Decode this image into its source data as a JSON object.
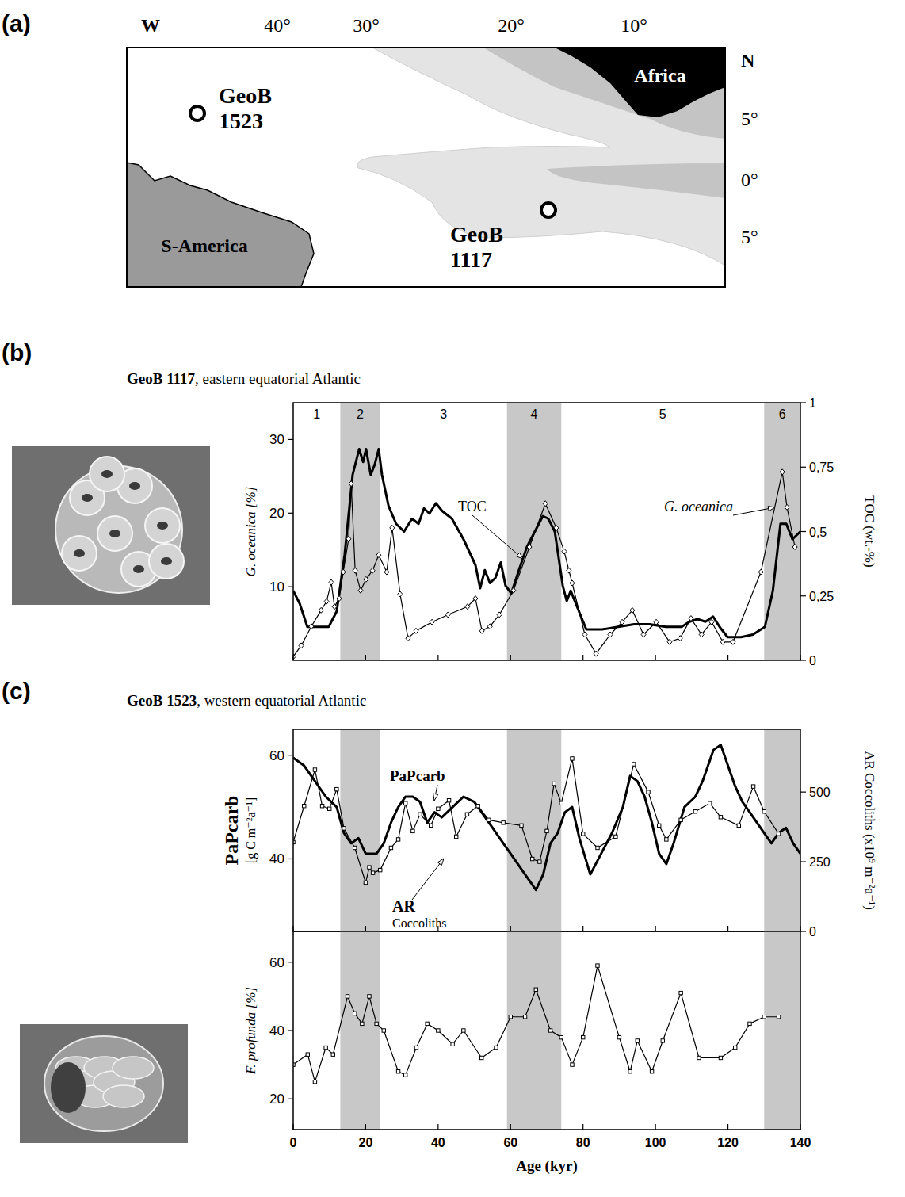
{
  "map": {
    "panel": "(a)",
    "lon_labels": [
      "W",
      "40°",
      "30°",
      "20°",
      "10°"
    ],
    "lat_labels": [
      "N",
      "5°",
      "0°",
      "5°"
    ],
    "regions": [
      "Africa",
      "S-America"
    ],
    "sites": [
      "GeoB 1523",
      "GeoB 1117"
    ]
  },
  "chart_data": [
    {
      "type": "line",
      "panel": "(b)",
      "title": "GeoB 1117, eastern equatorial Atlantic",
      "ylabel": "G. oceanica [%]",
      "y2label": "TOC (wt.-%)",
      "xlim": [
        0,
        140
      ],
      "xticks": [
        0,
        20,
        40,
        60,
        80,
        100,
        120,
        140
      ],
      "ylim": [
        0,
        35
      ],
      "yticks": [
        10,
        20,
        30
      ],
      "y2lim": [
        0,
        1
      ],
      "y2ticks": [
        0,
        {
          "value": 0.25,
          "label": "0,25"
        },
        {
          "value": 0.5,
          "label": "0,5"
        },
        {
          "value": 0.75,
          "label": "0,75"
        },
        1
      ],
      "tick_labels": "y",
      "stages": [
        {
          "label": "1",
          "from": 0,
          "to": 13
        },
        {
          "label": "2",
          "from": 13,
          "to": 24
        },
        {
          "label": "3",
          "from": 24,
          "to": 59
        },
        {
          "label": "4",
          "from": 59,
          "to": 74
        },
        {
          "label": "5",
          "from": 74,
          "to": 130
        },
        {
          "label": "6",
          "from": 130,
          "to": 140
        }
      ],
      "shaded_intervals": [
        [
          13,
          24
        ],
        [
          59,
          74
        ],
        [
          130,
          140
        ]
      ],
      "series": [
        {
          "name": "TOC",
          "axis": "y2",
          "color": "#000000",
          "line_style": "thick",
          "marker": "none",
          "x": [
            0,
            1.8,
            3.9,
            6.6,
            9.8,
            12.0,
            14.2,
            16.4,
            18.2,
            19.3,
            20.1,
            21.4,
            22.5,
            23.6,
            24.5,
            26.3,
            28.4,
            30.6,
            32.8,
            34.6,
            36.1,
            37.6,
            39.4,
            41.1,
            43.8,
            47.0,
            50.3,
            51.6,
            52.9,
            54.3,
            55.8,
            57.3,
            58.6,
            60.2,
            62.3,
            64.5,
            66.7,
            68.9,
            70.4,
            72.2,
            74.4,
            75.5,
            76.6,
            78.3,
            80.9,
            85.3,
            89.7,
            94.1,
            98.4,
            102.8,
            107.2,
            109.4,
            111.6,
            113.8,
            115.9,
            117.7,
            119.9,
            123.6,
            126.9,
            130.2,
            132.4,
            134.5,
            136.1,
            137.8,
            140
          ],
          "values": [
            0.27,
            0.22,
            0.13,
            0.13,
            0.13,
            0.19,
            0.41,
            0.72,
            0.82,
            0.77,
            0.82,
            0.72,
            0.76,
            0.82,
            0.72,
            0.6,
            0.53,
            0.5,
            0.55,
            0.53,
            0.59,
            0.57,
            0.61,
            0.58,
            0.55,
            0.47,
            0.37,
            0.28,
            0.35,
            0.3,
            0.32,
            0.38,
            0.29,
            0.26,
            0.35,
            0.44,
            0.5,
            0.56,
            0.55,
            0.5,
            0.29,
            0.23,
            0.27,
            0.21,
            0.12,
            0.12,
            0.13,
            0.14,
            0.14,
            0.13,
            0.13,
            0.15,
            0.16,
            0.15,
            0.17,
            0.13,
            0.09,
            0.09,
            0.1,
            0.13,
            0.27,
            0.53,
            0.53,
            0.47,
            0.5
          ]
        },
        {
          "name": "G. oceanica",
          "color": "#000000",
          "line_style": "thin",
          "marker": "diamond",
          "x": [
            0,
            2.2,
            5.0,
            7.7,
            9.2,
            10.5,
            11.4,
            12.7,
            13.8,
            15.3,
            16.0,
            17.1,
            18.6,
            20.1,
            21.9,
            23.6,
            25.8,
            27.3,
            29.5,
            31.7,
            33.9,
            38.3,
            42.7,
            48.1,
            50.3,
            52.1,
            54.3,
            56.9,
            60.8,
            65.2,
            69.6,
            72.6,
            74.8,
            76.1,
            77.0,
            80.5,
            83.6,
            87.5,
            90.8,
            93.6,
            96.7,
            100.2,
            103.9,
            106.8,
            109.8,
            112.7,
            115.5,
            118.6,
            121.4,
            129.1,
            135.0,
            136.3,
            138.5
          ],
          "values": [
            0.5,
            2,
            4.6,
            6.8,
            8,
            10.6,
            7.3,
            8.4,
            12,
            16.5,
            24,
            12.2,
            9.5,
            11,
            12.2,
            14.3,
            12,
            18,
            9,
            3,
            4,
            5.2,
            6.2,
            7.3,
            8.4,
            4,
            4.6,
            6.2,
            9.5,
            15.4,
            21.3,
            18,
            14.8,
            12.2,
            10.5,
            3.5,
            0.9,
            3.5,
            5.2,
            6.8,
            3.5,
            5.2,
            2.5,
            3,
            5.7,
            3.5,
            5.2,
            2.5,
            2.5,
            12,
            25.6,
            20.8,
            15.4
          ]
        }
      ]
    },
    {
      "type": "line",
      "panel": "(c)",
      "title": "GeoB 1523, western equatorial Atlantic",
      "ylabel": "PaPcarb [g C m⁻²a⁻¹]",
      "y2label": "AR Coccoliths (x10⁹ m⁻²a⁻¹)",
      "xlim": [
        0,
        140
      ],
      "xticks": [
        0,
        20,
        40,
        60,
        80,
        100,
        120,
        140
      ],
      "ylim": [
        26,
        65
      ],
      "yticks": [
        40,
        60
      ],
      "y2lim": [
        0,
        725
      ],
      "y2ticks": [
        0,
        250,
        500
      ],
      "tick_labels": "y",
      "shaded_intervals": [
        [
          13,
          24
        ],
        [
          59,
          74
        ],
        [
          130,
          140
        ]
      ],
      "series": [
        {
          "name": "PaPcarb",
          "color": "#000000",
          "line_style": "thick",
          "marker": "none",
          "x": [
            0,
            3,
            6,
            9,
            12,
            14,
            16,
            18,
            20,
            23,
            25,
            27,
            29,
            31,
            33,
            35,
            37,
            39,
            41,
            44,
            47,
            50,
            52,
            55,
            58,
            61,
            64,
            67,
            69,
            71,
            73,
            75,
            77,
            79,
            82,
            85,
            88,
            91,
            93,
            95,
            97,
            99,
            101,
            103,
            105,
            108,
            111,
            113,
            116,
            118,
            120,
            122,
            124,
            127,
            130,
            132,
            134,
            136,
            138,
            140
          ],
          "values": [
            59.5,
            58,
            55,
            52,
            50,
            45,
            43,
            44,
            41,
            41,
            43,
            47,
            50,
            52,
            52,
            51,
            47,
            49,
            48,
            50,
            52,
            51,
            49,
            46,
            43,
            40,
            37,
            34,
            37,
            43,
            45,
            49,
            50,
            44,
            37,
            41,
            45,
            50,
            56,
            55,
            52,
            47,
            41,
            39,
            43,
            50,
            52,
            55,
            61,
            62,
            58,
            54,
            51,
            48,
            45,
            43,
            45,
            46,
            43,
            41
          ]
        },
        {
          "name": "AR Coccoliths",
          "axis": "y2",
          "color": "#000000",
          "line_style": "thin",
          "marker": "square",
          "x": [
            0,
            3,
            6,
            8,
            10,
            12,
            14,
            17,
            20,
            21,
            22,
            24,
            27,
            29,
            31,
            33,
            35,
            38,
            40,
            43,
            45,
            48,
            51,
            54,
            58,
            63,
            66,
            68,
            70,
            72,
            74,
            77,
            80,
            84,
            89,
            94,
            98,
            101,
            103,
            107,
            111,
            115,
            118,
            123,
            127,
            130,
            134
          ],
          "values": [
            320,
            450,
            580,
            450,
            440,
            510,
            370,
            300,
            175,
            230,
            210,
            220,
            300,
            330,
            460,
            360,
            420,
            380,
            440,
            470,
            340,
            420,
            450,
            400,
            390,
            380,
            260,
            250,
            360,
            530,
            460,
            620,
            350,
            300,
            340,
            600,
            500,
            380,
            330,
            400,
            430,
            460,
            410,
            380,
            520,
            430,
            350
          ]
        }
      ]
    },
    {
      "type": "line",
      "ylabel": "F. profunda [%]",
      "xlabel": "Age (kyr)",
      "xlim": [
        0,
        140
      ],
      "xticks": [
        0,
        20,
        40,
        60,
        80,
        100,
        120,
        140
      ],
      "ylim": [
        11,
        69
      ],
      "yticks": [
        20,
        40,
        60
      ],
      "shaded_intervals": [
        [
          13,
          24
        ],
        [
          59,
          74
        ],
        [
          130,
          140
        ]
      ],
      "series": [
        {
          "color": "#000000",
          "line_style": "thin",
          "marker": "square",
          "x": [
            0,
            4,
            6,
            9,
            11,
            15,
            17,
            19,
            21,
            23,
            25,
            29,
            31,
            34,
            37,
            40,
            44,
            47,
            52,
            56,
            60,
            64,
            67,
            71,
            74,
            77,
            80,
            84,
            90,
            93,
            95,
            99,
            102,
            107,
            112,
            118,
            122,
            126,
            130,
            134
          ],
          "values": [
            30,
            33,
            25,
            35,
            33,
            50,
            45,
            42,
            50,
            42,
            40,
            28,
            27,
            35,
            42,
            40,
            36,
            40,
            32,
            35,
            44,
            44,
            52,
            40,
            38,
            30,
            38,
            59,
            38,
            28,
            37,
            28,
            37,
            51,
            32,
            32,
            35,
            42,
            44,
            44
          ]
        }
      ]
    }
  ]
}
